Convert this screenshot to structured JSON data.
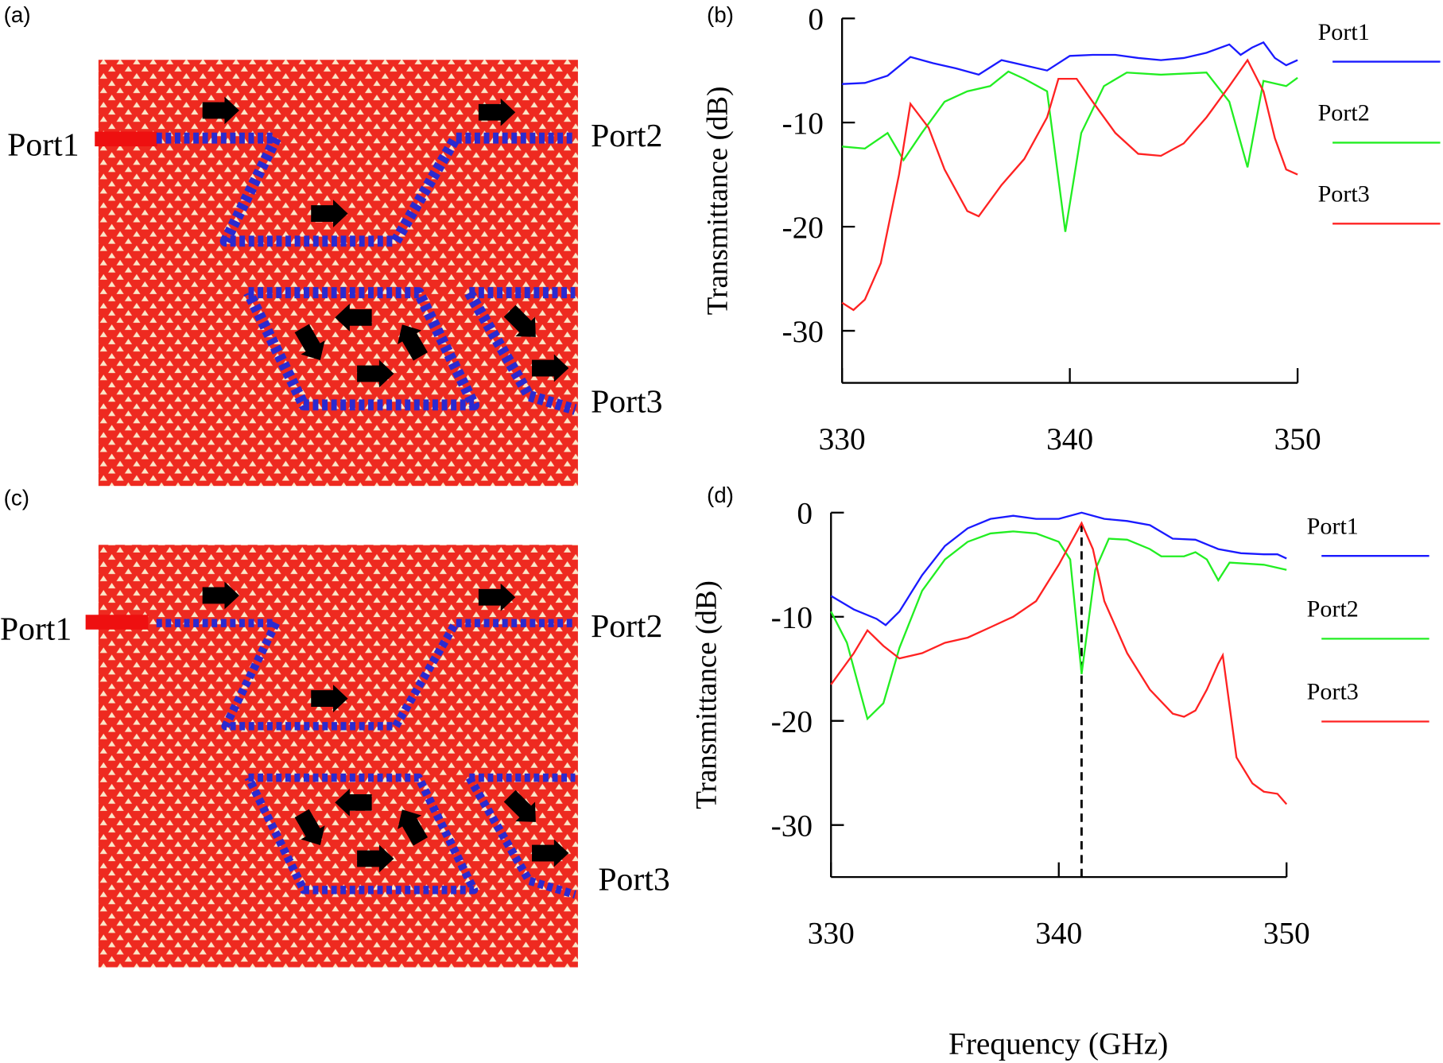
{
  "diagrams": [
    {
      "label": "(a)",
      "ports": [
        "Port1",
        "Port2",
        "Port3"
      ]
    },
    {
      "label": "(c)",
      "ports": [
        "Port1",
        "Port2",
        "Port3"
      ]
    }
  ],
  "figure_xlabel": "Frequency (GHz)",
  "chart_data": [
    {
      "type": "line",
      "panel_label": "(b)",
      "ylabel": "Transmittance (dB)",
      "xlim": [
        330,
        350
      ],
      "xticks": [
        330,
        340,
        350
      ],
      "ylim": [
        -35,
        0
      ],
      "yticks": [
        0,
        -10,
        -20,
        -30
      ],
      "series": [
        {
          "name": "Port1",
          "color": "#1a1aff",
          "x": [
            330,
            331,
            332,
            333,
            334,
            335,
            336,
            337,
            338,
            339,
            340,
            341,
            342,
            343,
            344,
            345,
            346,
            347,
            347.5,
            348,
            348.5,
            349,
            349.5,
            350
          ],
          "values": [
            -6.3,
            -6.2,
            -5.5,
            -3.7,
            -4.3,
            -4.8,
            -5.4,
            -4.0,
            -4.5,
            -5.0,
            -3.6,
            -3.5,
            -3.5,
            -3.8,
            -4.0,
            -3.8,
            -3.3,
            -2.5,
            -3.5,
            -2.8,
            -2.3,
            -3.8,
            -4.5,
            -4.0
          ]
        },
        {
          "name": "Port2",
          "color": "#22ee22",
          "x": [
            330,
            331,
            332,
            332.7,
            333.5,
            334.5,
            335.5,
            336.5,
            337.3,
            338,
            339,
            339.8,
            340.5,
            341.5,
            342.5,
            344,
            346,
            347,
            347.8,
            348.5,
            349.5,
            350
          ],
          "values": [
            -12.3,
            -12.5,
            -11.0,
            -13.6,
            -11.0,
            -8.0,
            -7.0,
            -6.5,
            -5.1,
            -5.8,
            -7.0,
            -20.5,
            -11.0,
            -6.5,
            -5.2,
            -5.4,
            -5.2,
            -8.0,
            -14.3,
            -6.0,
            -6.5,
            -5.7
          ]
        },
        {
          "name": "Port3",
          "color": "#ff2222",
          "x": [
            330,
            330.5,
            331,
            331.7,
            332.5,
            333,
            333.8,
            334.5,
            335.5,
            336,
            337,
            338,
            339,
            339.5,
            340.3,
            341,
            342,
            343,
            344,
            345,
            346,
            347,
            347.8,
            348.5,
            349,
            349.5,
            350
          ],
          "values": [
            -27.3,
            -28.0,
            -27.0,
            -23.5,
            -15.0,
            -8.2,
            -10.5,
            -14.5,
            -18.5,
            -19.0,
            -16.0,
            -13.5,
            -9.5,
            -5.8,
            -5.8,
            -8.0,
            -11.0,
            -13.0,
            -13.2,
            -12.0,
            -9.5,
            -6.5,
            -4.0,
            -7.0,
            -11.5,
            -14.5,
            -15.0
          ]
        }
      ]
    },
    {
      "type": "line",
      "panel_label": "(d)",
      "ylabel": "Transmittance (dB)",
      "xlim": [
        330,
        350
      ],
      "xticks": [
        330,
        340,
        350
      ],
      "ylim": [
        -35,
        0
      ],
      "yticks": [
        0,
        -10,
        -20,
        -30
      ],
      "vline": 341,
      "series": [
        {
          "name": "Port1",
          "color": "#1a1aff",
          "x": [
            330,
            331,
            332,
            332.4,
            333,
            334,
            335,
            336,
            337,
            338,
            339,
            340,
            341,
            342,
            343,
            344,
            345,
            346,
            347,
            348,
            349,
            349.6,
            350
          ],
          "values": [
            -8.0,
            -9.3,
            -10.2,
            -10.8,
            -9.5,
            -6.0,
            -3.2,
            -1.5,
            -0.6,
            -0.3,
            -0.6,
            -0.6,
            0,
            -0.6,
            -0.8,
            -1.2,
            -2.5,
            -2.6,
            -3.5,
            -3.9,
            -4.0,
            -4.0,
            -4.4
          ]
        },
        {
          "name": "Port2",
          "color": "#22ee22",
          "x": [
            330,
            330.7,
            331.6,
            332.3,
            333,
            334,
            335,
            336,
            337,
            338,
            339,
            340,
            340.5,
            341,
            341.6,
            342.2,
            343,
            344,
            344.5,
            345.5,
            346,
            346.5,
            347,
            347.5,
            349,
            350
          ],
          "values": [
            -9.5,
            -12.5,
            -19.8,
            -18.3,
            -13.0,
            -7.5,
            -4.5,
            -2.8,
            -2.0,
            -1.8,
            -2.0,
            -2.8,
            -4.5,
            -15.5,
            -5.5,
            -2.5,
            -2.6,
            -3.5,
            -4.2,
            -4.2,
            -3.8,
            -4.5,
            -6.5,
            -4.8,
            -5.0,
            -5.5
          ]
        },
        {
          "name": "Port3",
          "color": "#ff2222",
          "x": [
            330,
            331,
            331.6,
            332.3,
            333,
            334,
            335,
            336,
            337,
            338,
            339,
            340,
            341,
            341.5,
            342,
            343,
            344,
            345,
            345.5,
            346,
            346.5,
            347,
            347.2,
            347.8,
            348.5,
            349,
            349.6,
            350
          ],
          "values": [
            -16.5,
            -13.5,
            -11.3,
            -12.8,
            -14.0,
            -13.5,
            -12.5,
            -12.0,
            -11.0,
            -10.0,
            -8.5,
            -5.0,
            -1.0,
            -3.5,
            -8.5,
            -13.5,
            -17.0,
            -19.3,
            -19.6,
            -19.0,
            -17.0,
            -14.5,
            -13.7,
            -23.5,
            -26.0,
            -26.8,
            -27.0,
            -28.0
          ]
        }
      ]
    }
  ]
}
